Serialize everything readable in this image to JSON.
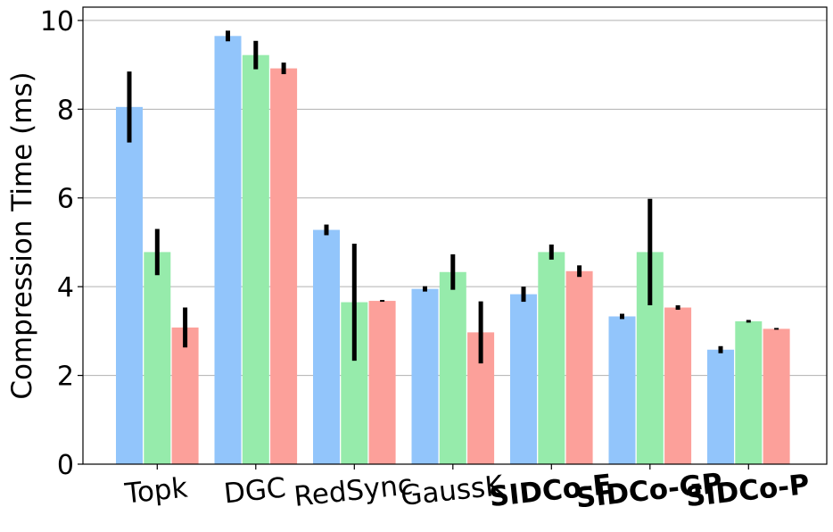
{
  "chart_data": {
    "type": "bar",
    "title": "",
    "xlabel": "",
    "ylabel": "Compression Time (ms)",
    "ylim": [
      0,
      10.3
    ],
    "yticks": [
      0,
      2,
      4,
      6,
      8,
      10
    ],
    "grid": "horizontal",
    "legend": "none",
    "categories": [
      {
        "label": "Topk",
        "color": "#000000",
        "bold": false
      },
      {
        "label": "DGC",
        "color": "#000000",
        "bold": false
      },
      {
        "label": "RedSync",
        "color": "#000000",
        "bold": false
      },
      {
        "label": "GaussK",
        "color": "#000000",
        "bold": false
      },
      {
        "label": "SIDCo-E",
        "color": "#ff0000",
        "bold": true
      },
      {
        "label": "SIDCo-GP",
        "color": "#bf00bf",
        "bold": true
      },
      {
        "label": "SIDCo-P",
        "color": "#bfbf00",
        "bold": true
      }
    ],
    "series": [
      {
        "color": "#92c5fb",
        "values": [
          8.05,
          9.65,
          5.28,
          3.95,
          3.83,
          3.33,
          2.58
        ],
        "errors": [
          0.8,
          0.12,
          0.12,
          0.06,
          0.17,
          0.06,
          0.08
        ]
      },
      {
        "color": "#96ebab",
        "values": [
          4.78,
          9.22,
          3.65,
          4.33,
          4.78,
          4.78,
          3.22
        ],
        "errors": [
          0.52,
          0.32,
          1.32,
          0.4,
          0.17,
          1.2,
          0.03
        ]
      },
      {
        "color": "#fca09a",
        "values": [
          3.08,
          8.92,
          3.68,
          2.97,
          4.35,
          3.53,
          3.05
        ],
        "errors": [
          0.45,
          0.13,
          0.02,
          0.7,
          0.13,
          0.05,
          0.02
        ]
      }
    ]
  }
}
